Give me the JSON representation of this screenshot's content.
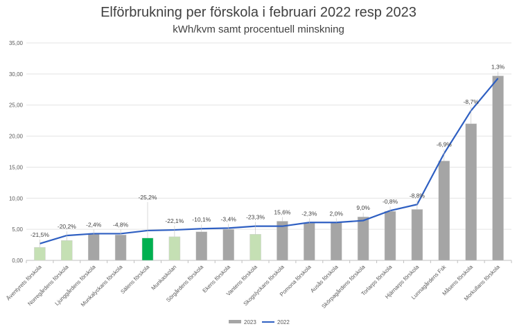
{
  "chart_data": {
    "type": "bar+line",
    "title": "Elförbrukning per förskola i februari 2022 resp 2023",
    "subtitle": "kWh/kvm samt procentuell minskning",
    "ylim": [
      0,
      35
    ],
    "yticks": [
      "0,00",
      "5,00",
      "10,00",
      "15,00",
      "20,00",
      "25,00",
      "30,00",
      "35,00"
    ],
    "ytick_values": [
      0,
      5,
      10,
      15,
      20,
      25,
      30,
      35
    ],
    "grid": true,
    "legend_position": "bottom",
    "categories": [
      "Äventyrets förskola",
      "Norregårdens förskola",
      "Ljunggårdens förskola",
      "Munkalyckans förskola",
      "Sälens förskola",
      "Munkaskolan",
      "Sörgårdens förskola",
      "Ekens förskola",
      "Vantens förskola",
      "Skogslyckans förskola",
      "Pomona förskola",
      "Ausås förskola",
      "Skörpagårdens förskola",
      "Torlarps förskola",
      "Hjärnarps förskola",
      "Lunnagårdens Fsk",
      "Måsens förskola",
      "Morkullans förskola"
    ],
    "series": [
      {
        "name": "2023",
        "type": "bar",
        "values": [
          2.1,
          3.2,
          4.2,
          4.1,
          3.6,
          3.8,
          4.6,
          5.0,
          4.2,
          6.3,
          6.0,
          6.1,
          7.0,
          7.9,
          8.2,
          16.0,
          22.0,
          29.7
        ],
        "colors": [
          "#c5e0b4",
          "#c5e0b4",
          "#a5a5a5",
          "#a5a5a5",
          "#00b050",
          "#c5e0b4",
          "#a5a5a5",
          "#a5a5a5",
          "#c5e0b4",
          "#a5a5a5",
          "#a5a5a5",
          "#a5a5a5",
          "#a5a5a5",
          "#a5a5a5",
          "#a5a5a5",
          "#a5a5a5",
          "#a5a5a5",
          "#a5a5a5"
        ]
      },
      {
        "name": "2022",
        "type": "line",
        "color": "#2e5fc2",
        "values": [
          2.7,
          4.0,
          4.3,
          4.3,
          4.8,
          4.9,
          5.1,
          5.2,
          5.5,
          5.5,
          6.1,
          6.1,
          6.4,
          8.0,
          9.0,
          17.2,
          24.1,
          29.3
        ]
      }
    ],
    "data_labels": [
      "-21,5%",
      "-20,2%",
      "-2,4%",
      "-4,8%",
      "-25,2%",
      "-22,1%",
      "-10,1%",
      "-3,4%",
      "-23,3%",
      "15,6%",
      "-2,3%",
      "2,0%",
      "9,0%",
      "-0,8%",
      "-8,8%",
      "-6,9%",
      "-8,7%",
      "1,3%"
    ],
    "highlighted_label_index": 4
  }
}
